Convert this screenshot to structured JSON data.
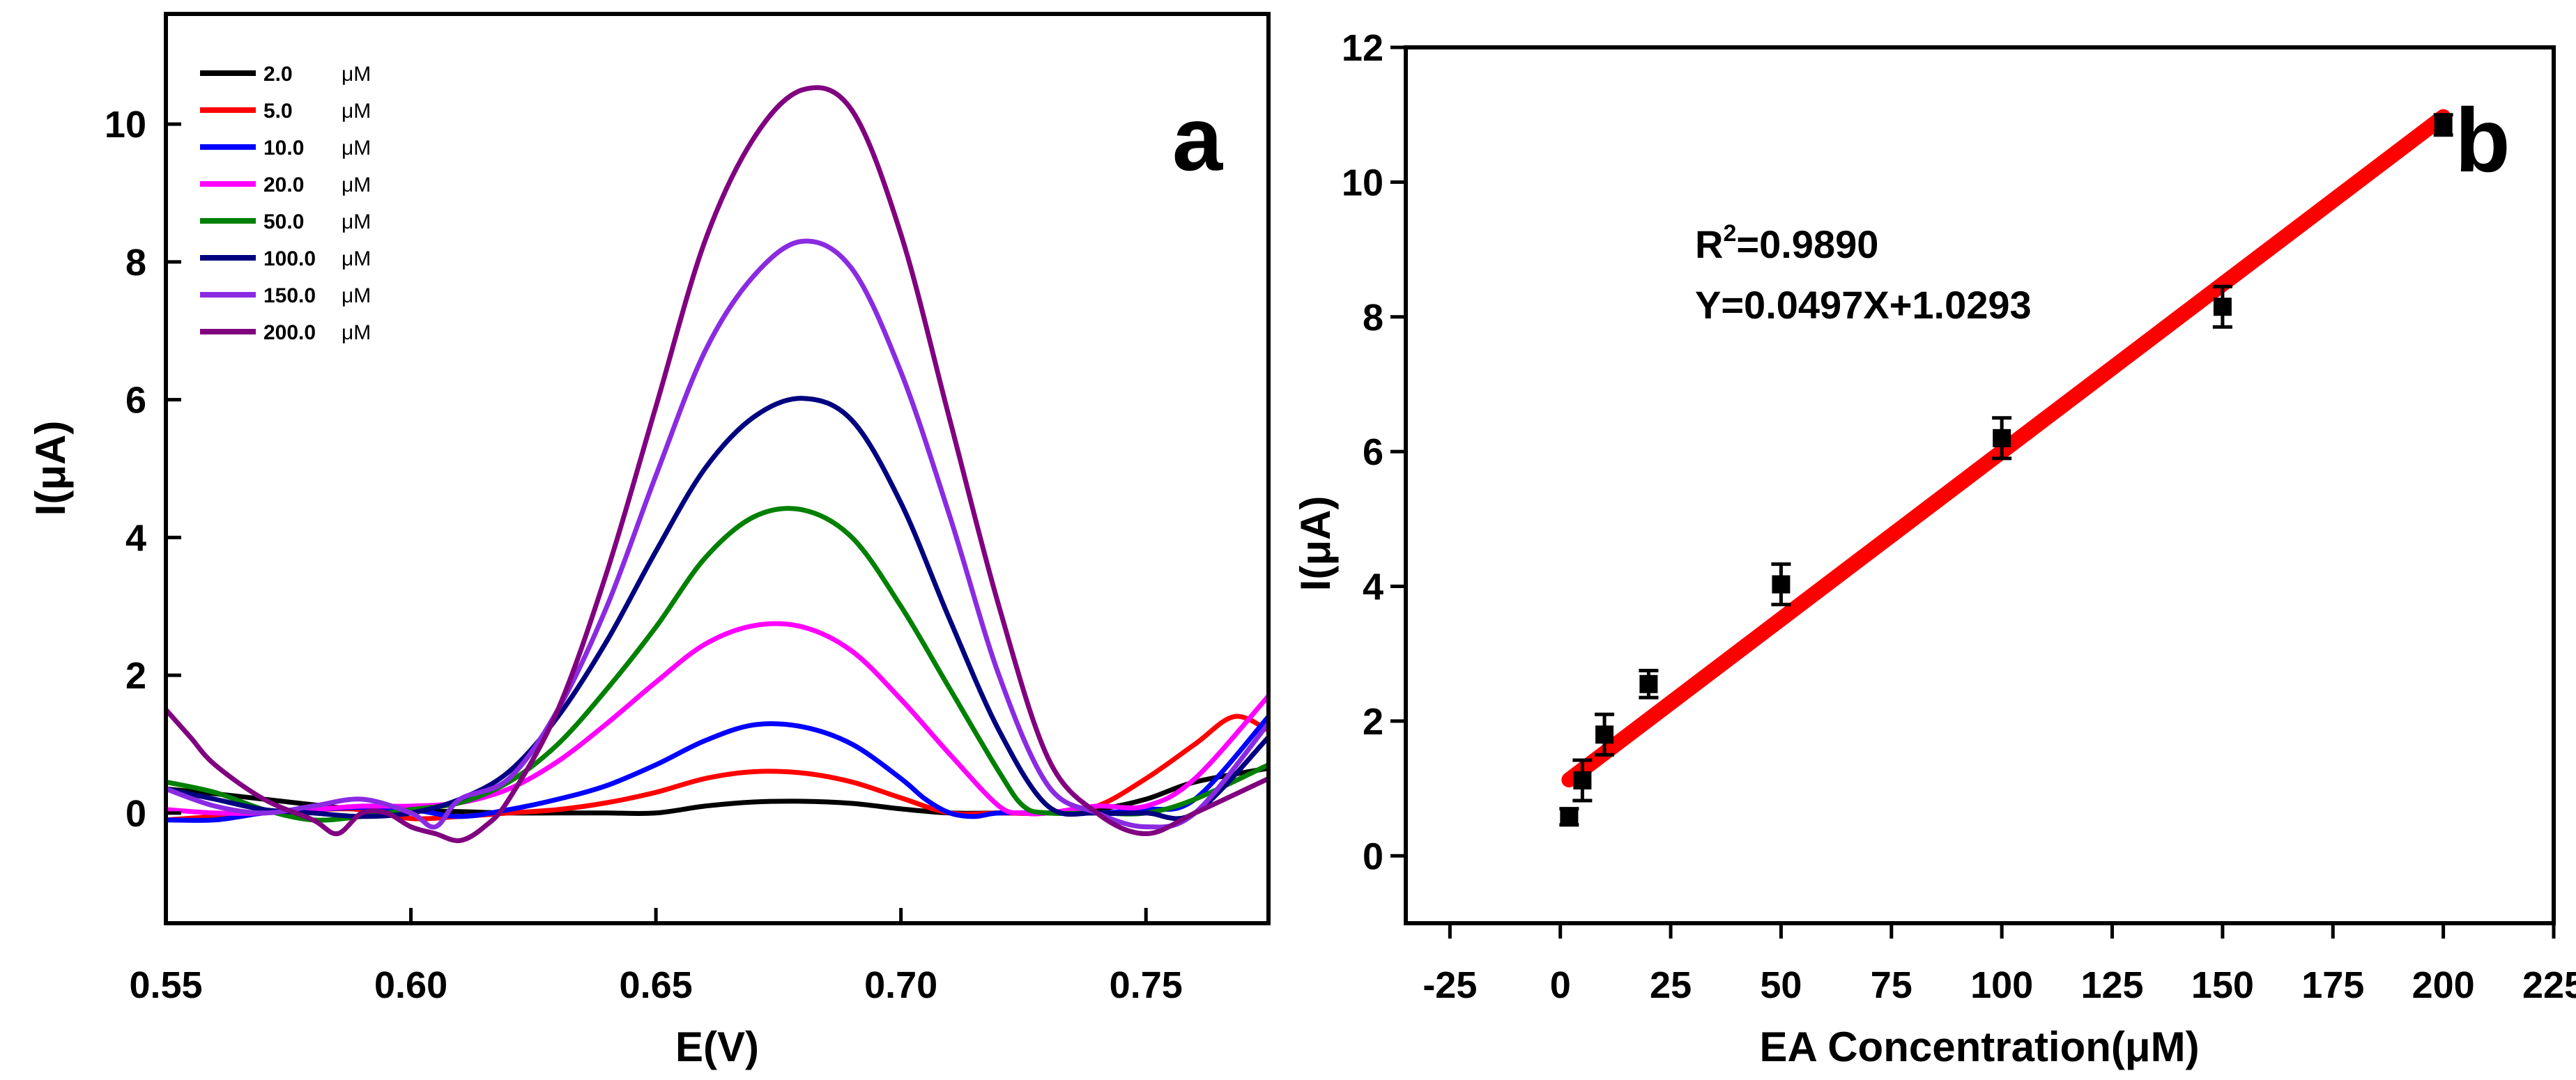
{
  "chart_data": [
    {
      "type": "line",
      "panel": "a",
      "xlabel": "E(V)",
      "ylabel": "I(μA)",
      "xlim": [
        0.55,
        0.775
      ],
      "ylim": [
        -1.6,
        11.6
      ],
      "xticks": [
        0.55,
        0.6,
        0.65,
        0.7,
        0.75
      ],
      "xtick_labels": [
        "0.55",
        "0.60",
        "0.65",
        "0.70",
        "0.75"
      ],
      "yticks": [
        0,
        2,
        4,
        6,
        8,
        10
      ],
      "ytick_labels": [
        "0",
        "2",
        "4",
        "6",
        "8",
        "10"
      ],
      "legend_position": "top-left",
      "series": [
        {
          "name": "2.0",
          "unit": "μM",
          "color": "#000000",
          "points": [
            [
              0.55,
              0.35
            ],
            [
              0.56,
              0.28
            ],
            [
              0.57,
              0.2
            ],
            [
              0.58,
              0.12
            ],
            [
              0.59,
              0.05
            ],
            [
              0.6,
              0.03
            ],
            [
              0.61,
              0.02
            ],
            [
              0.62,
              0.0
            ],
            [
              0.63,
              0.0
            ],
            [
              0.64,
              0.0
            ],
            [
              0.65,
              0.0
            ],
            [
              0.66,
              0.1
            ],
            [
              0.67,
              0.16
            ],
            [
              0.68,
              0.17
            ],
            [
              0.69,
              0.14
            ],
            [
              0.7,
              0.06
            ],
            [
              0.71,
              0.0
            ],
            [
              0.72,
              0.0
            ],
            [
              0.73,
              0.0
            ],
            [
              0.74,
              0.05
            ],
            [
              0.75,
              0.2
            ],
            [
              0.76,
              0.45
            ],
            [
              0.775,
              0.65
            ]
          ]
        },
        {
          "name": "5.0",
          "unit": "μM",
          "color": "#ff0000",
          "points": [
            [
              0.55,
              -0.1
            ],
            [
              0.56,
              -0.05
            ],
            [
              0.57,
              0.0
            ],
            [
              0.58,
              0.05
            ],
            [
              0.59,
              0.05
            ],
            [
              0.6,
              -0.08
            ],
            [
              0.61,
              -0.05
            ],
            [
              0.62,
              0.0
            ],
            [
              0.63,
              0.05
            ],
            [
              0.64,
              0.15
            ],
            [
              0.65,
              0.3
            ],
            [
              0.66,
              0.5
            ],
            [
              0.67,
              0.6
            ],
            [
              0.68,
              0.58
            ],
            [
              0.69,
              0.45
            ],
            [
              0.7,
              0.22
            ],
            [
              0.71,
              0.0
            ],
            [
              0.72,
              0.0
            ],
            [
              0.73,
              0.0
            ],
            [
              0.74,
              0.1
            ],
            [
              0.75,
              0.5
            ],
            [
              0.76,
              1.0
            ],
            [
              0.768,
              1.4
            ],
            [
              0.775,
              1.2
            ]
          ]
        },
        {
          "name": "10.0",
          "unit": "μM",
          "color": "#0000ff",
          "points": [
            [
              0.55,
              -0.1
            ],
            [
              0.56,
              -0.1
            ],
            [
              0.57,
              0.0
            ],
            [
              0.58,
              0.05
            ],
            [
              0.59,
              0.08
            ],
            [
              0.6,
              0.05
            ],
            [
              0.61,
              -0.05
            ],
            [
              0.62,
              0.05
            ],
            [
              0.63,
              0.2
            ],
            [
              0.64,
              0.4
            ],
            [
              0.65,
              0.7
            ],
            [
              0.66,
              1.05
            ],
            [
              0.67,
              1.28
            ],
            [
              0.68,
              1.25
            ],
            [
              0.69,
              1.0
            ],
            [
              0.7,
              0.5
            ],
            [
              0.705,
              0.2
            ],
            [
              0.71,
              0.0
            ],
            [
              0.715,
              -0.05
            ],
            [
              0.72,
              0.0
            ],
            [
              0.73,
              0.0
            ],
            [
              0.74,
              0.0
            ],
            [
              0.75,
              0.05
            ],
            [
              0.76,
              0.2
            ],
            [
              0.775,
              1.4
            ]
          ]
        },
        {
          "name": "20.0",
          "unit": "μM",
          "color": "#ff00ff",
          "points": [
            [
              0.55,
              0.05
            ],
            [
              0.56,
              0.0
            ],
            [
              0.57,
              0.0
            ],
            [
              0.58,
              0.05
            ],
            [
              0.59,
              0.1
            ],
            [
              0.6,
              0.1
            ],
            [
              0.61,
              0.15
            ],
            [
              0.62,
              0.35
            ],
            [
              0.63,
              0.75
            ],
            [
              0.64,
              1.3
            ],
            [
              0.65,
              1.9
            ],
            [
              0.66,
              2.45
            ],
            [
              0.67,
              2.72
            ],
            [
              0.68,
              2.7
            ],
            [
              0.69,
              2.35
            ],
            [
              0.7,
              1.65
            ],
            [
              0.71,
              0.85
            ],
            [
              0.72,
              0.1
            ],
            [
              0.725,
              0.0
            ],
            [
              0.73,
              0.0
            ],
            [
              0.74,
              0.1
            ],
            [
              0.75,
              0.1
            ],
            [
              0.76,
              0.5
            ],
            [
              0.775,
              1.7
            ]
          ]
        },
        {
          "name": "50.0",
          "unit": "μM",
          "color": "#008000",
          "points": [
            [
              0.55,
              0.45
            ],
            [
              0.56,
              0.3
            ],
            [
              0.57,
              0.05
            ],
            [
              0.58,
              -0.1
            ],
            [
              0.59,
              -0.05
            ],
            [
              0.6,
              0.05
            ],
            [
              0.61,
              0.15
            ],
            [
              0.62,
              0.45
            ],
            [
              0.63,
              1.0
            ],
            [
              0.64,
              1.8
            ],
            [
              0.65,
              2.7
            ],
            [
              0.66,
              3.7
            ],
            [
              0.67,
              4.3
            ],
            [
              0.68,
              4.4
            ],
            [
              0.69,
              4.0
            ],
            [
              0.7,
              3.0
            ],
            [
              0.71,
              1.8
            ],
            [
              0.72,
              0.6
            ],
            [
              0.725,
              0.1
            ],
            [
              0.73,
              0.0
            ],
            [
              0.74,
              0.0
            ],
            [
              0.75,
              0.0
            ],
            [
              0.76,
              0.2
            ],
            [
              0.775,
              0.7
            ]
          ]
        },
        {
          "name": "100.0",
          "unit": "μM",
          "color": "#000080",
          "points": [
            [
              0.55,
              0.35
            ],
            [
              0.56,
              0.2
            ],
            [
              0.57,
              0.05
            ],
            [
              0.58,
              0.0
            ],
            [
              0.59,
              -0.05
            ],
            [
              0.6,
              0.0
            ],
            [
              0.61,
              0.2
            ],
            [
              0.62,
              0.6
            ],
            [
              0.63,
              1.4
            ],
            [
              0.64,
              2.5
            ],
            [
              0.65,
              3.8
            ],
            [
              0.66,
              5.0
            ],
            [
              0.67,
              5.75
            ],
            [
              0.68,
              6.02
            ],
            [
              0.69,
              5.7
            ],
            [
              0.7,
              4.5
            ],
            [
              0.71,
              2.8
            ],
            [
              0.72,
              1.2
            ],
            [
              0.73,
              0.1
            ],
            [
              0.74,
              0.0
            ],
            [
              0.75,
              0.0
            ],
            [
              0.76,
              0.0
            ],
            [
              0.775,
              1.1
            ]
          ]
        },
        {
          "name": "150.0",
          "unit": "μM",
          "color": "#8a2be2",
          "points": [
            [
              0.55,
              0.35
            ],
            [
              0.56,
              0.1
            ],
            [
              0.57,
              0.0
            ],
            [
              0.58,
              0.1
            ],
            [
              0.59,
              0.2
            ],
            [
              0.6,
              0.0
            ],
            [
              0.605,
              -0.2
            ],
            [
              0.61,
              0.2
            ],
            [
              0.62,
              0.5
            ],
            [
              0.63,
              1.5
            ],
            [
              0.64,
              3.0
            ],
            [
              0.65,
              4.9
            ],
            [
              0.66,
              6.7
            ],
            [
              0.67,
              7.8
            ],
            [
              0.68,
              8.3
            ],
            [
              0.69,
              7.9
            ],
            [
              0.7,
              6.4
            ],
            [
              0.71,
              4.3
            ],
            [
              0.72,
              2.0
            ],
            [
              0.73,
              0.4
            ],
            [
              0.74,
              0.0
            ],
            [
              0.75,
              -0.2
            ],
            [
              0.76,
              0.0
            ],
            [
              0.775,
              1.3
            ]
          ]
        },
        {
          "name": "200.0",
          "unit": "μM",
          "color": "#800080",
          "points": [
            [
              0.55,
              1.5
            ],
            [
              0.555,
              1.1
            ],
            [
              0.56,
              0.7
            ],
            [
              0.57,
              0.2
            ],
            [
              0.58,
              -0.1
            ],
            [
              0.585,
              -0.3
            ],
            [
              0.59,
              0.0
            ],
            [
              0.595,
              0.0
            ],
            [
              0.6,
              -0.2
            ],
            [
              0.605,
              -0.3
            ],
            [
              0.61,
              -0.4
            ],
            [
              0.615,
              -0.2
            ],
            [
              0.62,
              0.2
            ],
            [
              0.63,
              1.5
            ],
            [
              0.64,
              3.5
            ],
            [
              0.65,
              5.9
            ],
            [
              0.66,
              8.3
            ],
            [
              0.67,
              9.8
            ],
            [
              0.68,
              10.5
            ],
            [
              0.69,
              10.2
            ],
            [
              0.7,
              8.4
            ],
            [
              0.71,
              5.7
            ],
            [
              0.72,
              3.0
            ],
            [
              0.73,
              0.8
            ],
            [
              0.74,
              0.0
            ],
            [
              0.75,
              -0.3
            ],
            [
              0.76,
              0.0
            ],
            [
              0.775,
              0.5
            ]
          ]
        }
      ]
    },
    {
      "type": "scatter",
      "panel": "b",
      "xlabel": "EA Concentration(μM)",
      "ylabel": "I(μA)",
      "xlim": [
        -35,
        225
      ],
      "ylim": [
        -1,
        12
      ],
      "xticks": [
        -25,
        0,
        25,
        50,
        75,
        100,
        125,
        150,
        175,
        200,
        225
      ],
      "xtick_labels": [
        "-25",
        "0",
        "25",
        "50",
        "75",
        "100",
        "125",
        "150",
        "175",
        "200",
        "225"
      ],
      "yticks": [
        0,
        2,
        4,
        6,
        8,
        10,
        12
      ],
      "ytick_labels": [
        "0",
        "2",
        "4",
        "6",
        "8",
        "10",
        "12"
      ],
      "points": [
        {
          "x": 2,
          "y": 0.58,
          "err": 0.12
        },
        {
          "x": 5,
          "y": 1.12,
          "err": 0.3
        },
        {
          "x": 10,
          "y": 1.8,
          "err": 0.3
        },
        {
          "x": 20,
          "y": 2.55,
          "err": 0.2
        },
        {
          "x": 50,
          "y": 4.03,
          "err": 0.3
        },
        {
          "x": 100,
          "y": 6.2,
          "err": 0.3
        },
        {
          "x": 150,
          "y": 8.15,
          "err": 0.3
        },
        {
          "x": 200,
          "y": 10.85,
          "err": 0.15
        }
      ],
      "fit": {
        "slope": 0.0497,
        "intercept": 1.0293,
        "x_range": [
          2,
          200
        ],
        "color": "#ff0000"
      },
      "r2_base": "R",
      "r2_sup": "2",
      "r2_value": "=0.9890",
      "equation": "Y=0.0497X+1.0293"
    }
  ]
}
